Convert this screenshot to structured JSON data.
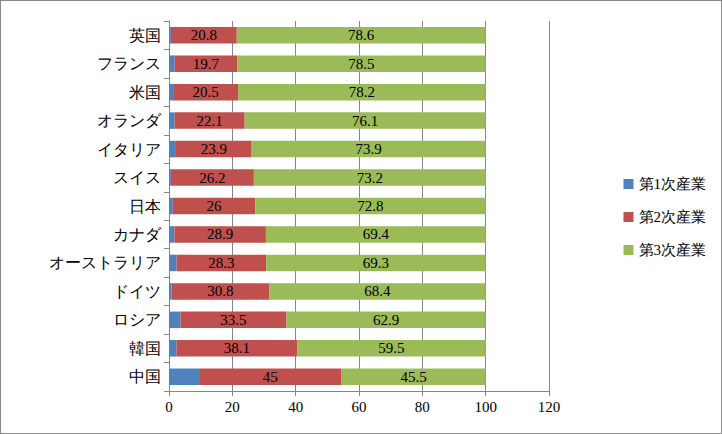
{
  "chart_data": {
    "type": "bar",
    "orientation": "horizontal",
    "stacked": true,
    "data_labels": true,
    "grid": true,
    "legend": "right",
    "categories": [
      "英国",
      "フランス",
      "米国",
      "オランダ",
      "イタリア",
      "スイス",
      "日本",
      "カナダ",
      "オーストラリア",
      "ドイツ",
      "ロシア",
      "韓国",
      "中国"
    ],
    "series": [
      {
        "name": "第1次産業",
        "color": "#4f81bd",
        "data_labels": false,
        "values": [
          0.6,
          1.8,
          1.3,
          1.8,
          2.2,
          0.6,
          1.2,
          1.7,
          2.4,
          0.8,
          3.6,
          2.4,
          9.5
        ]
      },
      {
        "name": "第2次産業",
        "color": "#c0504d",
        "data_labels": true,
        "values": [
          20.8,
          19.7,
          20.5,
          22.1,
          23.9,
          26.2,
          26,
          28.9,
          28.3,
          30.8,
          33.5,
          38.1,
          45
        ]
      },
      {
        "name": "第3次産業",
        "color": "#9bbb59",
        "data_labels": true,
        "values": [
          78.6,
          78.5,
          78.2,
          76.1,
          73.9,
          73.2,
          72.8,
          69.4,
          69.3,
          68.4,
          62.9,
          59.5,
          45.5
        ]
      }
    ],
    "xlim": [
      0,
      120
    ],
    "xticks": [
      0,
      20,
      40,
      60,
      80,
      100,
      120
    ]
  }
}
